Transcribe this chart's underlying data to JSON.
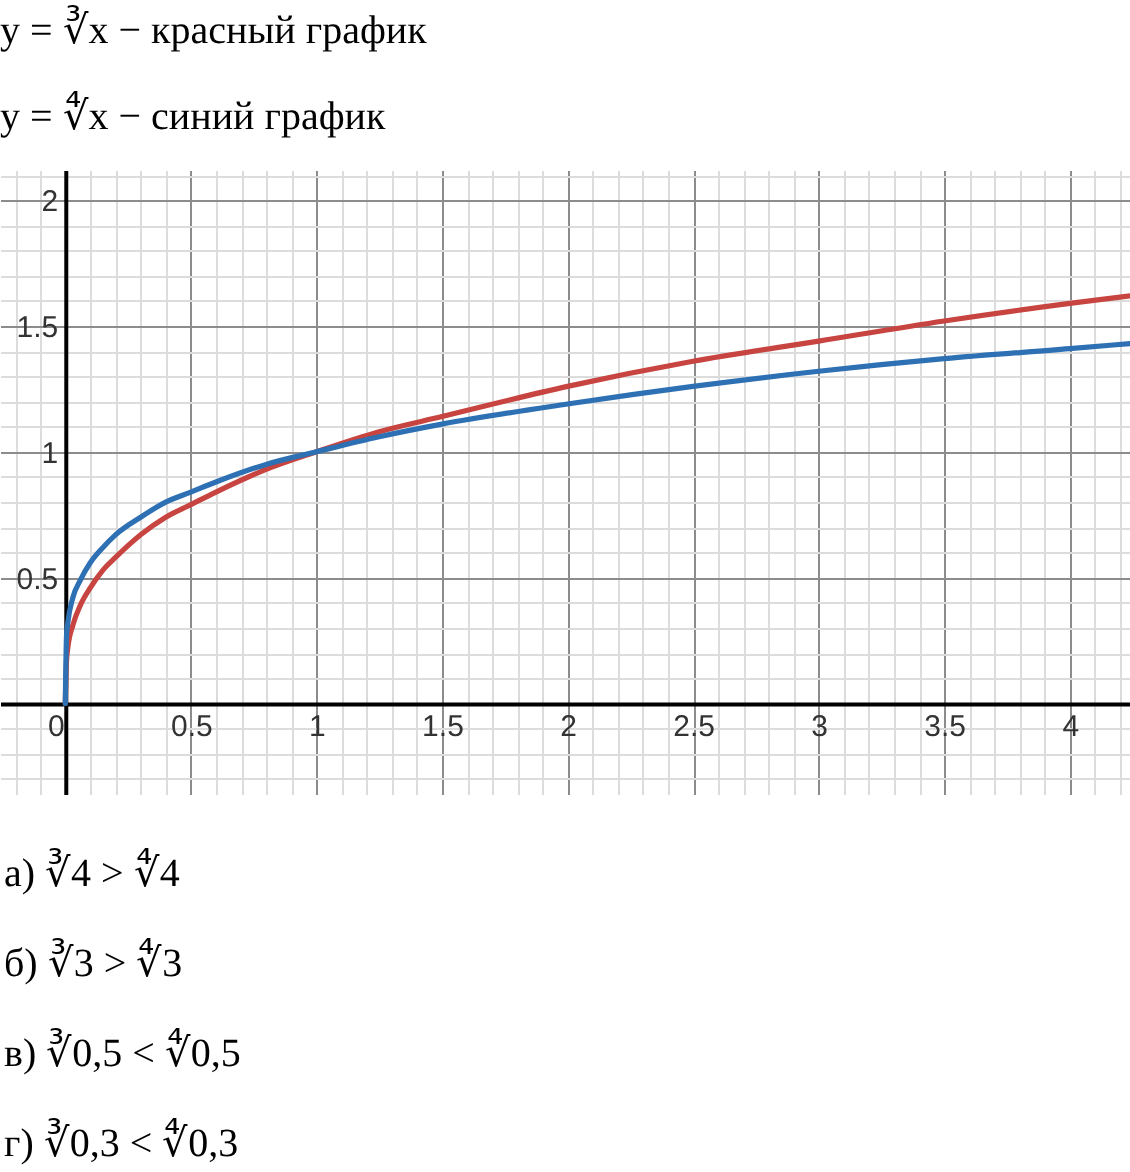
{
  "chart_data": {
    "type": "line",
    "title": "y = ∛x − красный график",
    "subtitle": "y = ∜x − синий график",
    "x": [
      0,
      0.005,
      0.01,
      0.03,
      0.06,
      0.1,
      0.15,
      0.2,
      0.3,
      0.4,
      0.5,
      0.6,
      0.8,
      1,
      1.25,
      1.5,
      2,
      2.5,
      3,
      3.5,
      4,
      4.24
    ],
    "series": [
      {
        "color": "#c74440",
        "values": [
          0,
          0.17,
          0.22,
          0.31,
          0.39,
          0.46,
          0.53,
          0.58,
          0.67,
          0.74,
          0.79,
          0.84,
          0.93,
          1,
          1.08,
          1.14,
          1.26,
          1.36,
          1.44,
          1.52,
          1.59,
          1.62
        ]
      },
      {
        "color": "#2d70b3",
        "values": [
          0,
          0.27,
          0.32,
          0.42,
          0.49,
          0.56,
          0.62,
          0.67,
          0.74,
          0.8,
          0.84,
          0.88,
          0.95,
          1,
          1.06,
          1.11,
          1.19,
          1.26,
          1.32,
          1.37,
          1.41,
          1.43
        ]
      }
    ],
    "xlim": [
      -0.26,
      4.24
    ],
    "ylim": [
      -0.36,
      2.12
    ],
    "xticks": [
      {
        "value": -0.2,
        "label": null
      },
      {
        "value": -0.1,
        "label": null
      },
      0,
      {
        "value": 0.1,
        "label": null
      },
      {
        "value": 0.2,
        "label": null
      },
      {
        "value": 0.3,
        "label": null
      },
      {
        "value": 0.4,
        "label": null
      },
      0.5,
      {
        "value": 0.6,
        "label": null
      },
      {
        "value": 0.7,
        "label": null
      },
      {
        "value": 0.8,
        "label": null
      },
      {
        "value": 0.9,
        "label": null
      },
      1,
      {
        "value": 1.1,
        "label": null
      },
      {
        "value": 1.2,
        "label": null
      },
      {
        "value": 1.3,
        "label": null
      },
      {
        "value": 1.4,
        "label": null
      },
      1.5,
      {
        "value": 1.6,
        "label": null
      },
      {
        "value": 1.7,
        "label": null
      },
      {
        "value": 1.8,
        "label": null
      },
      {
        "value": 1.9,
        "label": null
      },
      2,
      {
        "value": 2.1,
        "label": null
      },
      {
        "value": 2.2,
        "label": null
      },
      {
        "value": 2.3,
        "label": null
      },
      {
        "value": 2.4,
        "label": null
      },
      2.5,
      {
        "value": 2.6,
        "label": null
      },
      {
        "value": 2.7,
        "label": null
      },
      {
        "value": 2.8,
        "label": null
      },
      {
        "value": 2.9,
        "label": null
      },
      3,
      {
        "value": 3.1,
        "label": null
      },
      {
        "value": 3.2,
        "label": null
      },
      {
        "value": 3.3,
        "label": null
      },
      {
        "value": 3.4,
        "label": null
      },
      3.5,
      {
        "value": 3.6,
        "label": null
      },
      {
        "value": 3.7,
        "label": null
      },
      {
        "value": 3.8,
        "label": null
      },
      {
        "value": 3.9,
        "label": null
      },
      4,
      {
        "value": 4.1,
        "label": null
      },
      {
        "value": 4.2,
        "label": null
      }
    ],
    "yticks": [
      {
        "value": -0.3,
        "label": null
      },
      {
        "value": -0.2,
        "label": null
      },
      {
        "value": -0.1,
        "label": null
      },
      {
        "value": 0.1,
        "label": null
      },
      {
        "value": 0.2,
        "label": null
      },
      {
        "value": 0.3,
        "label": null
      },
      {
        "value": 0.4,
        "label": null
      },
      0.5,
      {
        "value": 0.6,
        "label": null
      },
      {
        "value": 0.7,
        "label": null
      },
      {
        "value": 0.8,
        "label": null
      },
      {
        "value": 0.9,
        "label": null
      },
      1,
      {
        "value": 1.1,
        "label": null
      },
      {
        "value": 1.2,
        "label": null
      },
      {
        "value": 1.3,
        "label": null
      },
      {
        "value": 1.4,
        "label": null
      },
      1.5,
      {
        "value": 1.6,
        "label": null
      },
      {
        "value": 1.7,
        "label": null
      },
      {
        "value": 1.8,
        "label": null
      },
      {
        "value": 1.9,
        "label": null
      },
      2,
      {
        "value": 2.1,
        "label": null
      }
    ],
    "grid": true,
    "annotations": [
      "а) ∛4 > ∜4",
      "б) ∛3 > ∜3",
      "в) ∛0,5 < ∜0,5",
      "г) ∛0,3 < ∜0,3"
    ]
  }
}
